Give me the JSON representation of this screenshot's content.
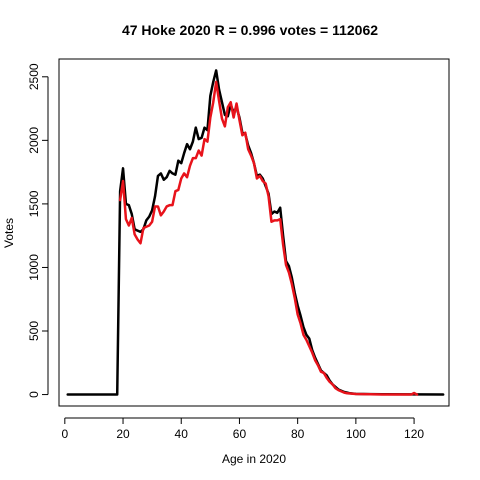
{
  "chart_data": {
    "type": "line",
    "title": "47 Hoke 2020 R = 0.996 votes = 112062",
    "xlabel": "Age in 2020",
    "ylabel": "Votes",
    "xlim": [
      -2,
      132
    ],
    "ylim": [
      -90,
      2640
    ],
    "x_ticks": [
      0,
      20,
      40,
      60,
      80,
      100,
      120
    ],
    "y_ticks": [
      0,
      500,
      1000,
      1500,
      2000,
      2500
    ],
    "grid": false,
    "series": [
      {
        "color": "#000000",
        "width": 2.5,
        "points": [
          [
            1,
            0
          ],
          [
            18,
            0
          ],
          [
            19,
            1600
          ],
          [
            20,
            1780
          ],
          [
            21,
            1500
          ],
          [
            22,
            1490
          ],
          [
            23,
            1420
          ],
          [
            24,
            1300
          ],
          [
            25,
            1290
          ],
          [
            26,
            1280
          ],
          [
            27,
            1300
          ],
          [
            28,
            1370
          ],
          [
            29,
            1400
          ],
          [
            30,
            1450
          ],
          [
            31,
            1560
          ],
          [
            32,
            1720
          ],
          [
            33,
            1740
          ],
          [
            34,
            1690
          ],
          [
            35,
            1710
          ],
          [
            36,
            1760
          ],
          [
            37,
            1740
          ],
          [
            38,
            1730
          ],
          [
            39,
            1840
          ],
          [
            40,
            1820
          ],
          [
            41,
            1900
          ],
          [
            42,
            1970
          ],
          [
            43,
            1930
          ],
          [
            44,
            1990
          ],
          [
            45,
            2100
          ],
          [
            46,
            2010
          ],
          [
            47,
            2020
          ],
          [
            48,
            2100
          ],
          [
            49,
            2080
          ],
          [
            50,
            2350
          ],
          [
            51,
            2460
          ],
          [
            52,
            2550
          ],
          [
            53,
            2400
          ],
          [
            54,
            2300
          ],
          [
            55,
            2200
          ],
          [
            56,
            2190
          ],
          [
            57,
            2280
          ],
          [
            58,
            2220
          ],
          [
            59,
            2260
          ],
          [
            60,
            2180
          ],
          [
            61,
            2060
          ],
          [
            62,
            2050
          ],
          [
            63,
            1960
          ],
          [
            64,
            1900
          ],
          [
            65,
            1820
          ],
          [
            66,
            1720
          ],
          [
            67,
            1730
          ],
          [
            68,
            1700
          ],
          [
            69,
            1640
          ],
          [
            70,
            1580
          ],
          [
            71,
            1420
          ],
          [
            72,
            1440
          ],
          [
            73,
            1430
          ],
          [
            74,
            1470
          ],
          [
            75,
            1250
          ],
          [
            76,
            1050
          ],
          [
            77,
            1010
          ],
          [
            78,
            920
          ],
          [
            79,
            800
          ],
          [
            80,
            700
          ],
          [
            81,
            620
          ],
          [
            82,
            530
          ],
          [
            83,
            470
          ],
          [
            84,
            440
          ],
          [
            85,
            350
          ],
          [
            86,
            290
          ],
          [
            87,
            240
          ],
          [
            88,
            190
          ],
          [
            89,
            170
          ],
          [
            90,
            150
          ],
          [
            91,
            110
          ],
          [
            92,
            80
          ],
          [
            93,
            60
          ],
          [
            94,
            40
          ],
          [
            95,
            30
          ],
          [
            96,
            20
          ],
          [
            97,
            15
          ],
          [
            98,
            10
          ],
          [
            100,
            5
          ],
          [
            105,
            3
          ],
          [
            110,
            2
          ],
          [
            130,
            0
          ]
        ]
      },
      {
        "color": "#e8131b",
        "width": 2.5,
        "points": [
          [
            19,
            1530
          ],
          [
            20,
            1680
          ],
          [
            21,
            1380
          ],
          [
            22,
            1330
          ],
          [
            23,
            1390
          ],
          [
            24,
            1260
          ],
          [
            25,
            1220
          ],
          [
            26,
            1190
          ],
          [
            27,
            1310
          ],
          [
            28,
            1320
          ],
          [
            29,
            1330
          ],
          [
            30,
            1360
          ],
          [
            31,
            1480
          ],
          [
            32,
            1480
          ],
          [
            33,
            1410
          ],
          [
            34,
            1440
          ],
          [
            35,
            1480
          ],
          [
            36,
            1490
          ],
          [
            37,
            1490
          ],
          [
            38,
            1600
          ],
          [
            39,
            1610
          ],
          [
            40,
            1700
          ],
          [
            41,
            1740
          ],
          [
            42,
            1710
          ],
          [
            43,
            1800
          ],
          [
            44,
            1860
          ],
          [
            45,
            1860
          ],
          [
            46,
            1920
          ],
          [
            47,
            1880
          ],
          [
            48,
            2010
          ],
          [
            49,
            1990
          ],
          [
            50,
            2180
          ],
          [
            51,
            2300
          ],
          [
            52,
            2460
          ],
          [
            53,
            2310
          ],
          [
            54,
            2170
          ],
          [
            55,
            2110
          ],
          [
            56,
            2260
          ],
          [
            57,
            2300
          ],
          [
            58,
            2180
          ],
          [
            59,
            2290
          ],
          [
            60,
            2160
          ],
          [
            61,
            2040
          ],
          [
            62,
            2060
          ],
          [
            63,
            1930
          ],
          [
            64,
            1880
          ],
          [
            65,
            1820
          ],
          [
            66,
            1700
          ],
          [
            67,
            1720
          ],
          [
            68,
            1680
          ],
          [
            69,
            1660
          ],
          [
            70,
            1560
          ],
          [
            71,
            1360
          ],
          [
            72,
            1370
          ],
          [
            73,
            1370
          ],
          [
            74,
            1380
          ],
          [
            75,
            1180
          ],
          [
            76,
            1020
          ],
          [
            77,
            960
          ],
          [
            78,
            870
          ],
          [
            79,
            760
          ],
          [
            80,
            630
          ],
          [
            81,
            560
          ],
          [
            82,
            470
          ],
          [
            83,
            430
          ],
          [
            84,
            380
          ],
          [
            85,
            330
          ],
          [
            86,
            270
          ],
          [
            87,
            230
          ],
          [
            88,
            180
          ],
          [
            89,
            170
          ],
          [
            90,
            130
          ],
          [
            91,
            100
          ],
          [
            92,
            80
          ],
          [
            93,
            50
          ],
          [
            94,
            35
          ],
          [
            95,
            25
          ],
          [
            96,
            15
          ],
          [
            97,
            10
          ],
          [
            98,
            8
          ],
          [
            100,
            4
          ],
          [
            105,
            2
          ],
          [
            111,
            0
          ],
          [
            119,
            0
          ],
          [
            120,
            12
          ],
          [
            121,
            0
          ]
        ]
      }
    ]
  }
}
